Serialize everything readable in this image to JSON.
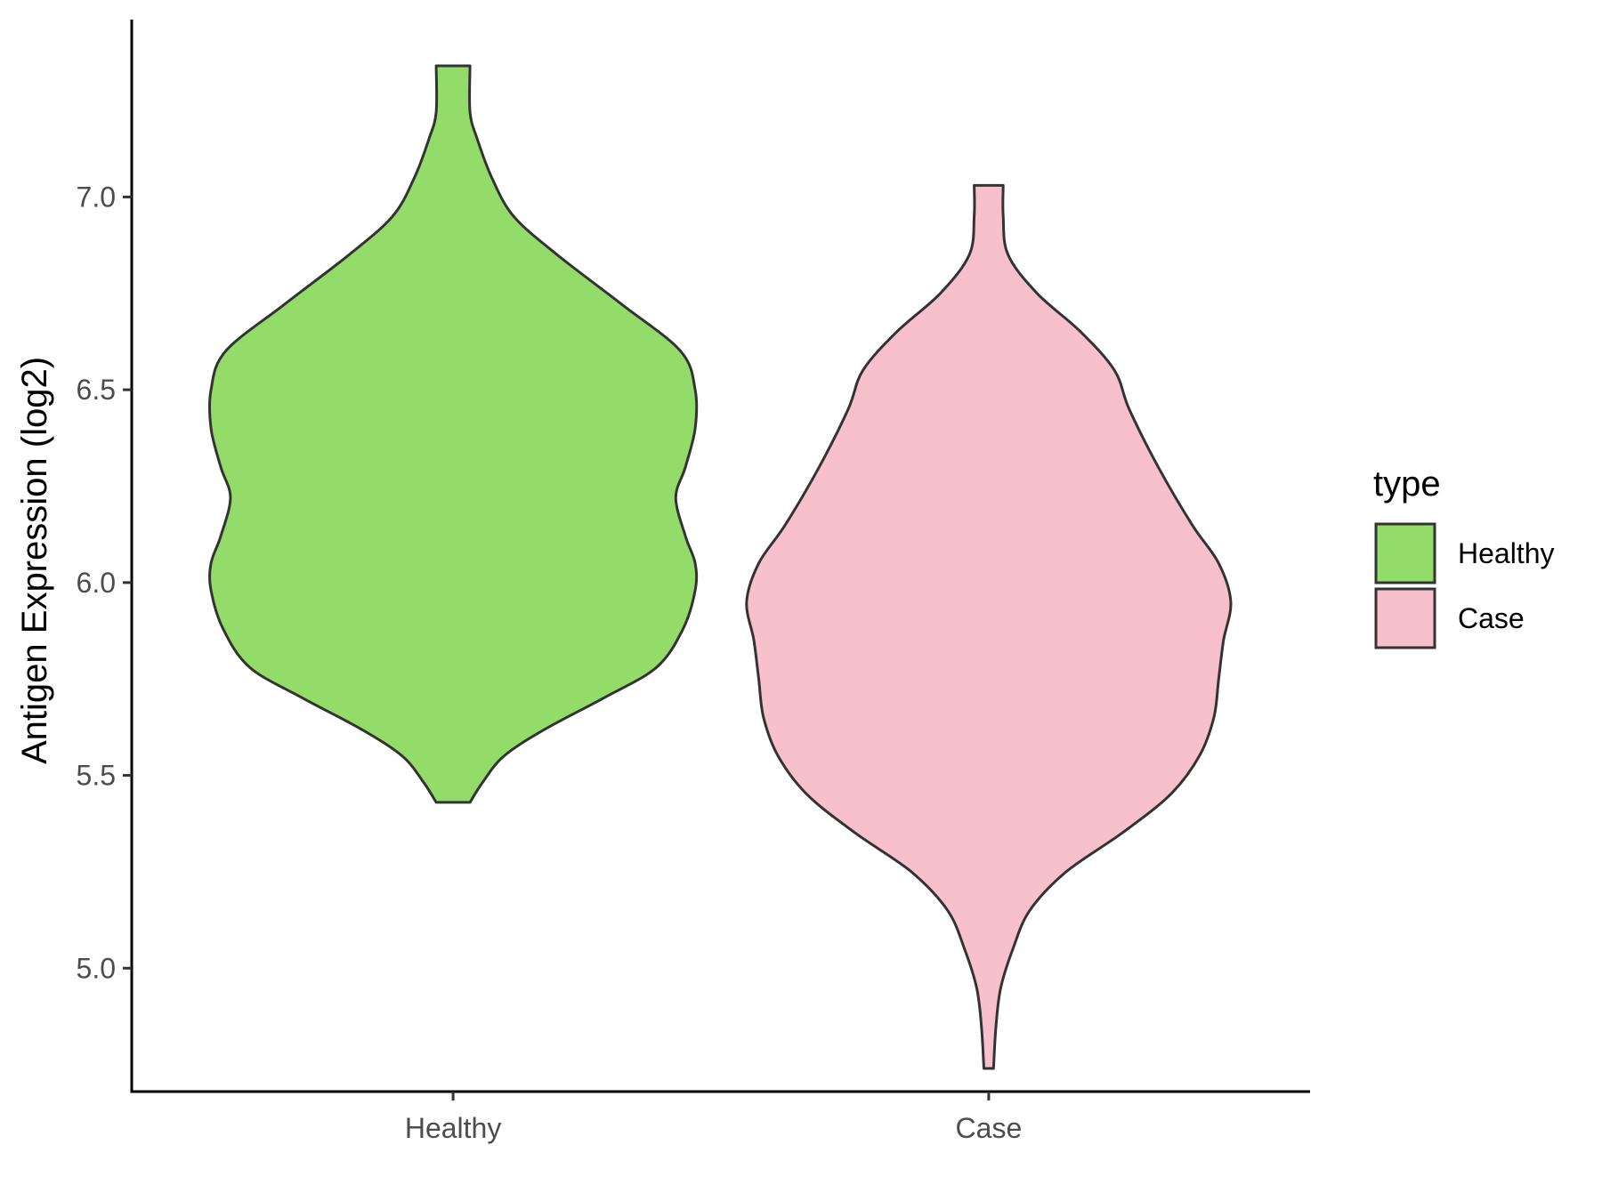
{
  "chart_data": {
    "type": "violin",
    "title": "",
    "xlabel": "",
    "ylabel": "Antigen Expression (log2)",
    "ylim": [
      4.68,
      7.46
    ],
    "yticks": [
      5.0,
      5.5,
      6.0,
      6.5,
      7.0
    ],
    "ytick_labels": [
      "5.0",
      "5.5",
      "6.0",
      "6.5",
      "7.0"
    ],
    "categories": [
      "Healthy",
      "Case"
    ],
    "legend": {
      "title": "type",
      "position": "right",
      "entries": [
        "Healthy",
        "Case"
      ]
    },
    "grid": false,
    "series": [
      {
        "name": "Healthy",
        "color": "#93DC6A",
        "min": 5.43,
        "max": 7.34,
        "density_profile": [
          [
            5.43,
            0.07
          ],
          [
            5.48,
            0.12
          ],
          [
            5.55,
            0.21
          ],
          [
            5.62,
            0.38
          ],
          [
            5.7,
            0.62
          ],
          [
            5.78,
            0.84
          ],
          [
            5.88,
            0.95
          ],
          [
            5.98,
            1.0
          ],
          [
            6.05,
            1.0
          ],
          [
            6.12,
            0.96
          ],
          [
            6.22,
            0.92
          ],
          [
            6.3,
            0.96
          ],
          [
            6.4,
            1.0
          ],
          [
            6.5,
            1.0
          ],
          [
            6.6,
            0.94
          ],
          [
            6.72,
            0.7
          ],
          [
            6.85,
            0.43
          ],
          [
            6.95,
            0.25
          ],
          [
            7.05,
            0.16
          ],
          [
            7.15,
            0.1
          ],
          [
            7.22,
            0.07
          ],
          [
            7.34,
            0.07
          ]
        ]
      },
      {
        "name": "Case",
        "color": "#F8C0CC",
        "min": 4.74,
        "max": 7.03,
        "density_profile": [
          [
            4.74,
            0.02
          ],
          [
            4.85,
            0.03
          ],
          [
            4.95,
            0.05
          ],
          [
            5.05,
            0.1
          ],
          [
            5.15,
            0.17
          ],
          [
            5.25,
            0.32
          ],
          [
            5.35,
            0.55
          ],
          [
            5.45,
            0.75
          ],
          [
            5.55,
            0.87
          ],
          [
            5.65,
            0.93
          ],
          [
            5.75,
            0.95
          ],
          [
            5.85,
            0.97
          ],
          [
            5.95,
            1.0
          ],
          [
            6.05,
            0.95
          ],
          [
            6.15,
            0.84
          ],
          [
            6.3,
            0.7
          ],
          [
            6.45,
            0.58
          ],
          [
            6.55,
            0.52
          ],
          [
            6.65,
            0.38
          ],
          [
            6.75,
            0.2
          ],
          [
            6.85,
            0.08
          ],
          [
            6.95,
            0.06
          ],
          [
            7.03,
            0.06
          ]
        ]
      }
    ]
  }
}
